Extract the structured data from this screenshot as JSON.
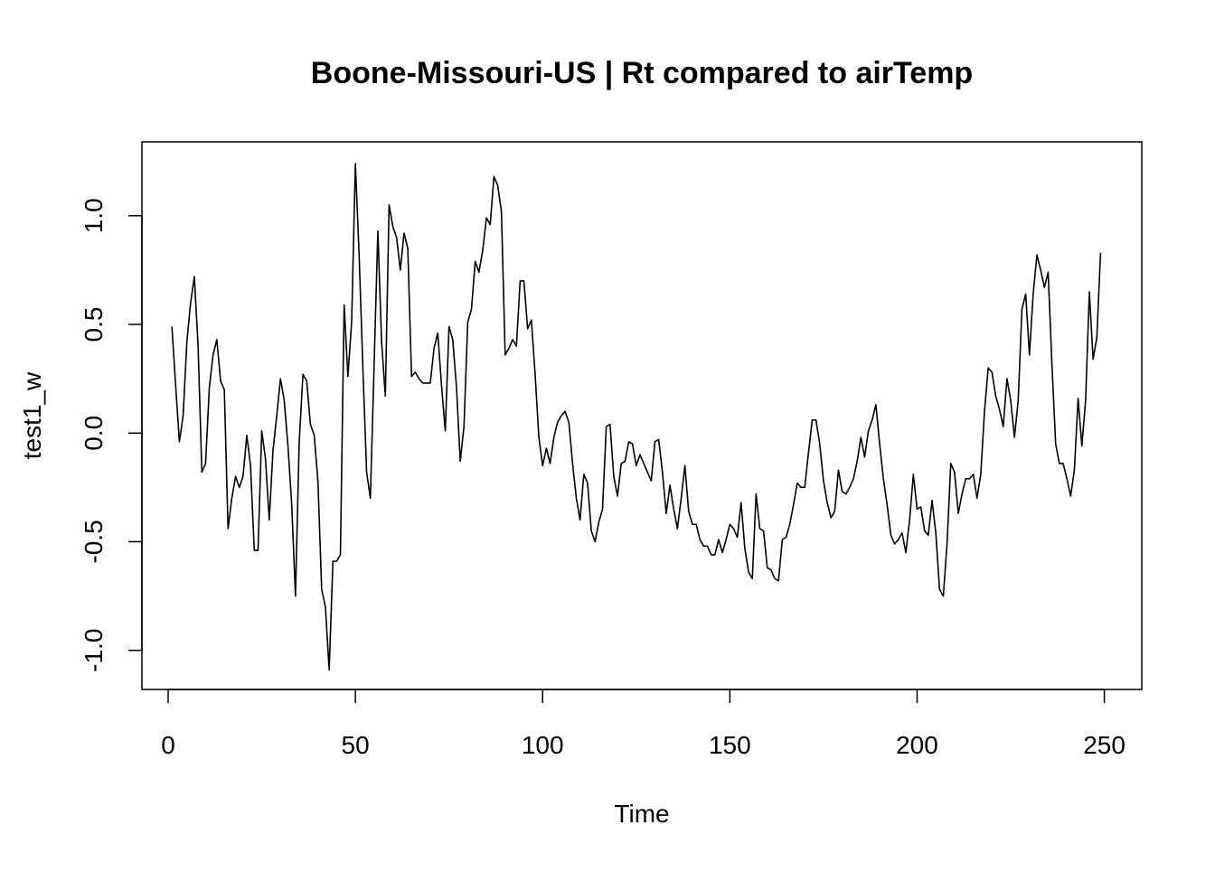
{
  "chart_data": {
    "type": "line",
    "title": "Boone-Missouri-US | Rt compared to airTemp",
    "xlabel": "Time",
    "ylabel": "test1_w",
    "xlim": [
      -7,
      260
    ],
    "ylim": [
      -1.18,
      1.34
    ],
    "xticks": [
      0,
      50,
      100,
      150,
      200,
      250
    ],
    "yticks": [
      -1.0,
      -0.5,
      0.0,
      0.5,
      1.0
    ],
    "xtick_labels": [
      "0",
      "50",
      "100",
      "150",
      "200",
      "250"
    ],
    "ytick_labels": [
      "-1.0",
      "-0.5",
      "0.0",
      "0.5",
      "1.0"
    ],
    "grid": false,
    "line_color": "#000000",
    "series": [
      {
        "x_start": 1,
        "values": [
          0.49,
          0.22,
          -0.04,
          0.08,
          0.42,
          0.6,
          0.72,
          0.4,
          -0.18,
          -0.14,
          0.21,
          0.36,
          0.43,
          0.24,
          0.2,
          -0.44,
          -0.3,
          -0.2,
          -0.25,
          -0.2,
          -0.01,
          -0.15,
          -0.54,
          -0.54,
          0.01,
          -0.12,
          -0.4,
          -0.08,
          0.08,
          0.25,
          0.15,
          -0.06,
          -0.33,
          -0.75,
          -0.04,
          0.27,
          0.24,
          0.04,
          -0.01,
          -0.22,
          -0.72,
          -0.8,
          -1.09,
          -0.59,
          -0.59,
          -0.56,
          0.59,
          0.26,
          0.51,
          1.24,
          0.82,
          0.3,
          -0.18,
          -0.3,
          0.31,
          0.93,
          0.42,
          0.17,
          1.05,
          0.95,
          0.9,
          0.75,
          0.92,
          0.85,
          0.26,
          0.28,
          0.25,
          0.23,
          0.23,
          0.23,
          0.39,
          0.46,
          0.22,
          0.01,
          0.49,
          0.43,
          0.21,
          -0.13,
          0.03,
          0.51,
          0.57,
          0.79,
          0.74,
          0.84,
          0.99,
          0.96,
          1.18,
          1.14,
          1.02,
          0.36,
          0.39,
          0.43,
          0.4,
          0.7,
          0.7,
          0.48,
          0.52,
          0.27,
          -0.02,
          -0.15,
          -0.07,
          -0.14,
          -0.02,
          0.05,
          0.08,
          0.1,
          0.05,
          -0.14,
          -0.3,
          -0.4,
          -0.19,
          -0.23,
          -0.45,
          -0.5,
          -0.41,
          -0.35,
          0.03,
          0.04,
          -0.2,
          -0.29,
          -0.14,
          -0.13,
          -0.04,
          -0.05,
          -0.15,
          -0.1,
          -0.14,
          -0.18,
          -0.22,
          -0.04,
          -0.03,
          -0.18,
          -0.37,
          -0.24,
          -0.35,
          -0.44,
          -0.3,
          -0.15,
          -0.36,
          -0.42,
          -0.42,
          -0.49,
          -0.52,
          -0.52,
          -0.56,
          -0.56,
          -0.49,
          -0.55,
          -0.49,
          -0.42,
          -0.44,
          -0.48,
          -0.32,
          -0.53,
          -0.64,
          -0.67,
          -0.28,
          -0.44,
          -0.45,
          -0.62,
          -0.63,
          -0.67,
          -0.68,
          -0.49,
          -0.48,
          -0.42,
          -0.33,
          -0.23,
          -0.25,
          -0.25,
          -0.09,
          0.06,
          0.06,
          -0.05,
          -0.22,
          -0.32,
          -0.39,
          -0.36,
          -0.17,
          -0.27,
          -0.28,
          -0.25,
          -0.21,
          -0.13,
          -0.02,
          -0.11,
          0.01,
          0.06,
          0.13,
          -0.05,
          -0.21,
          -0.33,
          -0.47,
          -0.51,
          -0.49,
          -0.46,
          -0.55,
          -0.4,
          -0.19,
          -0.35,
          -0.34,
          -0.45,
          -0.47,
          -0.31,
          -0.46,
          -0.72,
          -0.75,
          -0.51,
          -0.14,
          -0.18,
          -0.37,
          -0.28,
          -0.21,
          -0.21,
          -0.19,
          -0.3,
          -0.19,
          0.1,
          0.3,
          0.28,
          0.17,
          0.11,
          0.03,
          0.25,
          0.15,
          -0.02,
          0.15,
          0.57,
          0.64,
          0.36,
          0.64,
          0.82,
          0.75,
          0.67,
          0.74,
          0.32,
          -0.05,
          -0.14,
          -0.14,
          -0.21,
          -0.29,
          -0.17,
          0.16,
          -0.06,
          0.15,
          0.65,
          0.34,
          0.44,
          0.83
        ]
      }
    ]
  }
}
